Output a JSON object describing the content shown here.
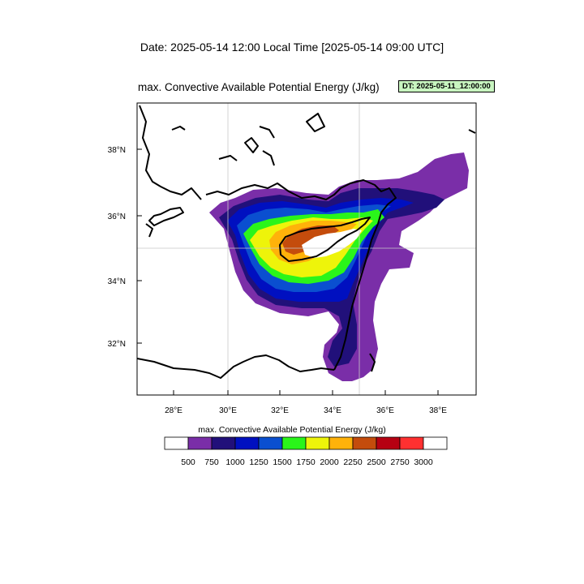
{
  "header": {
    "title": "Date: 2025-05-14  12:00 Local Time [2025-05-14  09:00 UTC]",
    "subtitle": "max. Convective Available Potential Energy   (J/kg)",
    "dt_badge": "DT: 2025-05-11_12:00:00"
  },
  "map": {
    "lon_ticks": [
      "28°E",
      "30°E",
      "32°E",
      "34°E",
      "36°E",
      "38°E"
    ],
    "lat_ticks": [
      "38°N",
      "36°N",
      "34°N",
      "32°N"
    ],
    "grid_lon": "35°E",
    "grid_lat": "35°N"
  },
  "colorbar": {
    "title": "max. Convective Available Potential Energy  (J/kg)",
    "labels": [
      "500",
      "750",
      "1000",
      "1250",
      "1500",
      "1750",
      "2000",
      "2250",
      "2500",
      "2750",
      "3000"
    ],
    "colors": [
      "#ffffff",
      "#7a2ea8",
      "#21107a",
      "#0010c0",
      "#0a4fd0",
      "#2af51a",
      "#eef40a",
      "#ffb20a",
      "#c44c0c",
      "#b60012",
      "#ff3030",
      "#ffffff"
    ]
  }
}
